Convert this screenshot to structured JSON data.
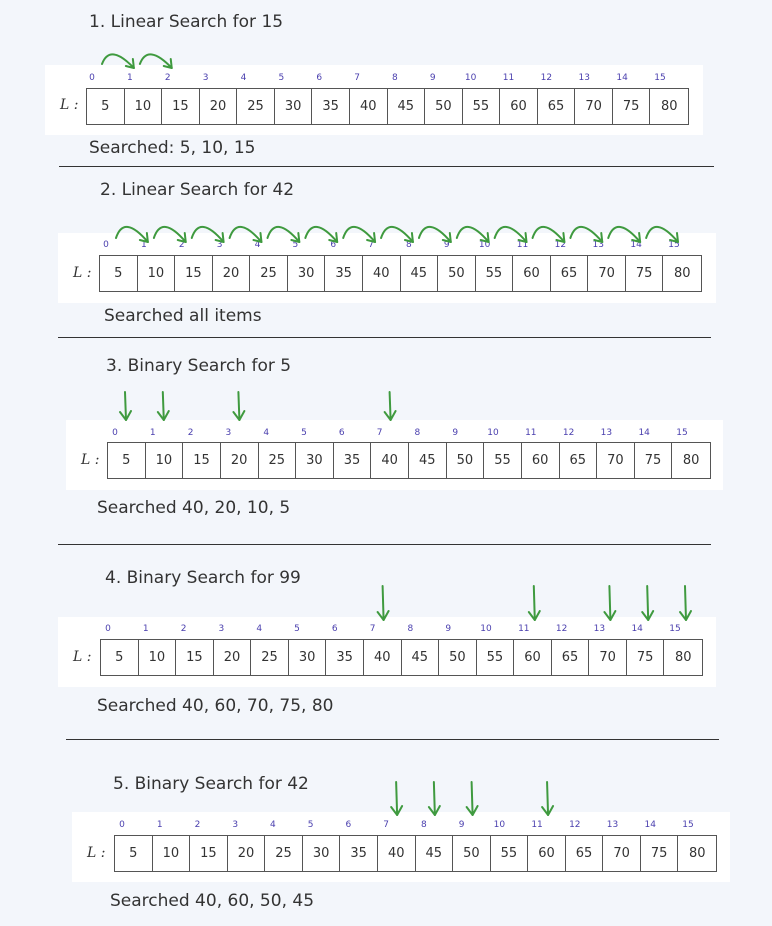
{
  "array_label": "L :",
  "indices": [
    "0",
    "1",
    "2",
    "3",
    "4",
    "5",
    "6",
    "7",
    "8",
    "9",
    "10",
    "11",
    "12",
    "13",
    "14",
    "15"
  ],
  "values": [
    "5",
    "10",
    "15",
    "20",
    "25",
    "30",
    "35",
    "40",
    "45",
    "50",
    "55",
    "60",
    "65",
    "70",
    "75",
    "80"
  ],
  "arrow_color": "#3f9a3f",
  "index_color": "#4a3fae",
  "sections": [
    {
      "title": "1. Linear Search for 15",
      "result": "Searched: 5, 10, 15",
      "arrow_type": "curved",
      "arrows": [
        [
          0,
          1
        ],
        [
          1,
          2
        ]
      ]
    },
    {
      "title": "2. Linear Search for 42",
      "result": "Searched all items",
      "arrow_type": "curved",
      "arrows": [
        [
          0,
          1
        ],
        [
          1,
          2
        ],
        [
          2,
          3
        ],
        [
          3,
          4
        ],
        [
          4,
          5
        ],
        [
          5,
          6
        ],
        [
          6,
          7
        ],
        [
          7,
          8
        ],
        [
          8,
          9
        ],
        [
          9,
          10
        ],
        [
          10,
          11
        ],
        [
          11,
          12
        ],
        [
          12,
          13
        ],
        [
          13,
          14
        ],
        [
          14,
          15
        ]
      ]
    },
    {
      "title": "3. Binary Search for 5",
      "result": "Searched 40, 20, 10, 5",
      "arrow_type": "down",
      "arrows": [
        0,
        1,
        3,
        7
      ]
    },
    {
      "title": "4. Binary Search for 99",
      "result": "Searched 40, 60, 70, 75, 80",
      "arrow_type": "down",
      "arrows": [
        7,
        11,
        13,
        14,
        15
      ]
    },
    {
      "title": "5. Binary Search for 42",
      "result": "Searched 40, 60, 50, 45",
      "arrow_type": "down",
      "arrows": [
        7,
        8,
        9,
        11
      ]
    }
  ]
}
